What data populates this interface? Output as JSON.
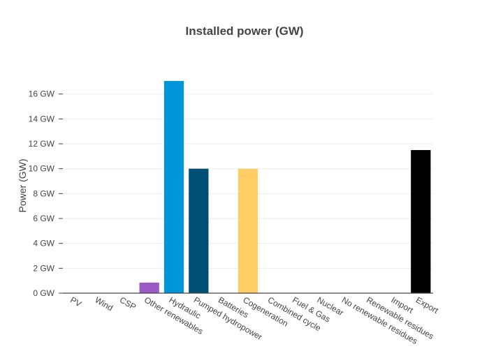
{
  "chart_data": {
    "type": "bar",
    "title": "Installed power (GW)",
    "xlabel": "",
    "ylabel": "Power (GW)",
    "categories": [
      "PV",
      "Wind",
      "CSP",
      "Other renewables",
      "Hydraulic",
      "Pumped hydropower",
      "Batteries",
      "Cogeneration",
      "Combined cycle",
      "Fuel & Gas",
      "Nuclear",
      "No renewable residues",
      "Renewable residues",
      "Import",
      "Export"
    ],
    "values": [
      0,
      0,
      0,
      0.85,
      17.05,
      10.0,
      0,
      10.0,
      0,
      0,
      0,
      0,
      0,
      0,
      11.5
    ],
    "colors": [
      "#f9d33c",
      "#6db6d8",
      "#f7a9a3",
      "#9b59c2",
      "#0094d8",
      "#004f74",
      "#999999",
      "#ffcc66",
      "#cccccc",
      "#888888",
      "#ff7f0e",
      "#aaaaaa",
      "#2ca02c",
      "#555555",
      "#000000"
    ],
    "ylim": [
      0,
      17.05
    ],
    "yticks": [
      0,
      2,
      4,
      6,
      8,
      10,
      12,
      14,
      16
    ],
    "ytick_labels": [
      "0 GW",
      "2 GW",
      "4 GW",
      "6 GW",
      "8 GW",
      "10 GW",
      "12 GW",
      "14 GW",
      "16 GW"
    ],
    "grid": true,
    "legend": "none"
  }
}
